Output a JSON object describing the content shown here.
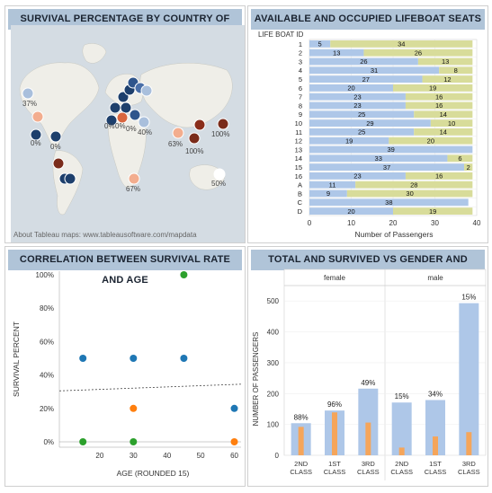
{
  "panels": {
    "map_title": "SURVIVAL PERCENTAGE BY COUNTRY OF ORIGIN",
    "lifeboat_title": "AVAILABLE AND OCCUPIED LIFEBOAT SEATS",
    "scatter_title": "CORRELATION BETWEEN SURVIVAL RATE AND AGE",
    "gender_title": "TOTAL AND SURVIVED VS GENDER AND CLASS"
  },
  "map": {
    "attribution": "About Tableau maps: www.tableausoftware.com/mapdata",
    "labels": [
      "37%",
      "0%",
      "0%",
      "0%",
      "0%",
      "0%",
      "40%",
      "63%",
      "100%",
      "100%",
      "67%",
      "50%"
    ]
  },
  "colors": {
    "header_bg": "#b0c4d8",
    "bar_blue": "#aec7e8",
    "bar_olive": "#d8dc9a",
    "orange": "#f5a55a",
    "scatter_blue": "#1f77b4",
    "scatter_green": "#2ca02c",
    "scatter_orange": "#ff7f0e"
  },
  "chart_data": [
    {
      "type": "bar",
      "orientation": "horizontal-stacked",
      "title": "AVAILABLE AND OCCUPIED LIFEBOAT SEATS",
      "category_header": "LIFE BOAT ID",
      "xlabel": "Number of Passengers",
      "xlim": [
        0,
        40
      ],
      "xticks": [
        "0",
        "10",
        "20",
        "30",
        "40"
      ],
      "categories": [
        "1",
        "2",
        "3",
        "4",
        "5",
        "6",
        "7",
        "8",
        "9",
        "10",
        "11",
        "12",
        "13",
        "14",
        "15",
        "16",
        "A",
        "B",
        "C",
        "D"
      ],
      "series": [
        {
          "values": [
            5,
            13,
            26,
            31,
            27,
            20,
            23,
            23,
            25,
            29,
            25,
            19,
            39,
            33,
            37,
            23,
            11,
            9,
            38,
            20
          ]
        },
        {
          "values": [
            34,
            26,
            13,
            8,
            12,
            19,
            16,
            16,
            14,
            10,
            14,
            20,
            null,
            6,
            2,
            16,
            28,
            30,
            null,
            19
          ]
        }
      ]
    },
    {
      "type": "scatter",
      "title": "CORRELATION BETWEEN SURVIVAL RATE AND AGE",
      "xlabel": "AGE (ROUNDED 15)",
      "ylabel": "SURVIVAL PERCENT",
      "xlim": [
        8,
        62
      ],
      "ylim": [
        0,
        100
      ],
      "xticks": [
        "20",
        "30",
        "40",
        "50",
        "60"
      ],
      "yticks": [
        "0%",
        "20%",
        "40%",
        "60%",
        "80%",
        "100%"
      ],
      "points": [
        {
          "x": 15,
          "y": 50,
          "c": "blue"
        },
        {
          "x": 30,
          "y": 50,
          "c": "blue"
        },
        {
          "x": 45,
          "y": 50,
          "c": "blue"
        },
        {
          "x": 60,
          "y": 20,
          "c": "blue"
        },
        {
          "x": 15,
          "y": 0,
          "c": "green"
        },
        {
          "x": 30,
          "y": 0,
          "c": "green"
        },
        {
          "x": 45,
          "y": 100,
          "c": "green"
        },
        {
          "x": 30,
          "y": 20,
          "c": "orange"
        },
        {
          "x": 60,
          "y": 0,
          "c": "orange"
        }
      ],
      "trend": {
        "x": [
          8,
          62
        ],
        "y": [
          30.5,
          34.5
        ]
      }
    },
    {
      "type": "bar",
      "title": "TOTAL AND SURVIVED VS GENDER AND CLASS",
      "ylabel": "NUMBER OF PASSENGERS",
      "ylim": [
        0,
        550
      ],
      "yticks": [
        "0",
        "100",
        "200",
        "300",
        "400",
        "500"
      ],
      "groups": [
        "female",
        "male"
      ],
      "categories": [
        "2ND\nCLASS",
        "1ST\nCLASS",
        "3RD\nCLASS",
        "2ND\nCLASS",
        "1ST\nCLASS",
        "3RD\nCLASS"
      ],
      "series": [
        {
          "values": [
            104,
            145,
            216,
            171,
            179,
            493
          ]
        },
        {
          "values": [
            92,
            139,
            106,
            25,
            61,
            75
          ]
        }
      ],
      "labels": [
        "88%",
        "96%",
        "49%",
        "15%",
        "34%",
        "15%"
      ]
    }
  ]
}
